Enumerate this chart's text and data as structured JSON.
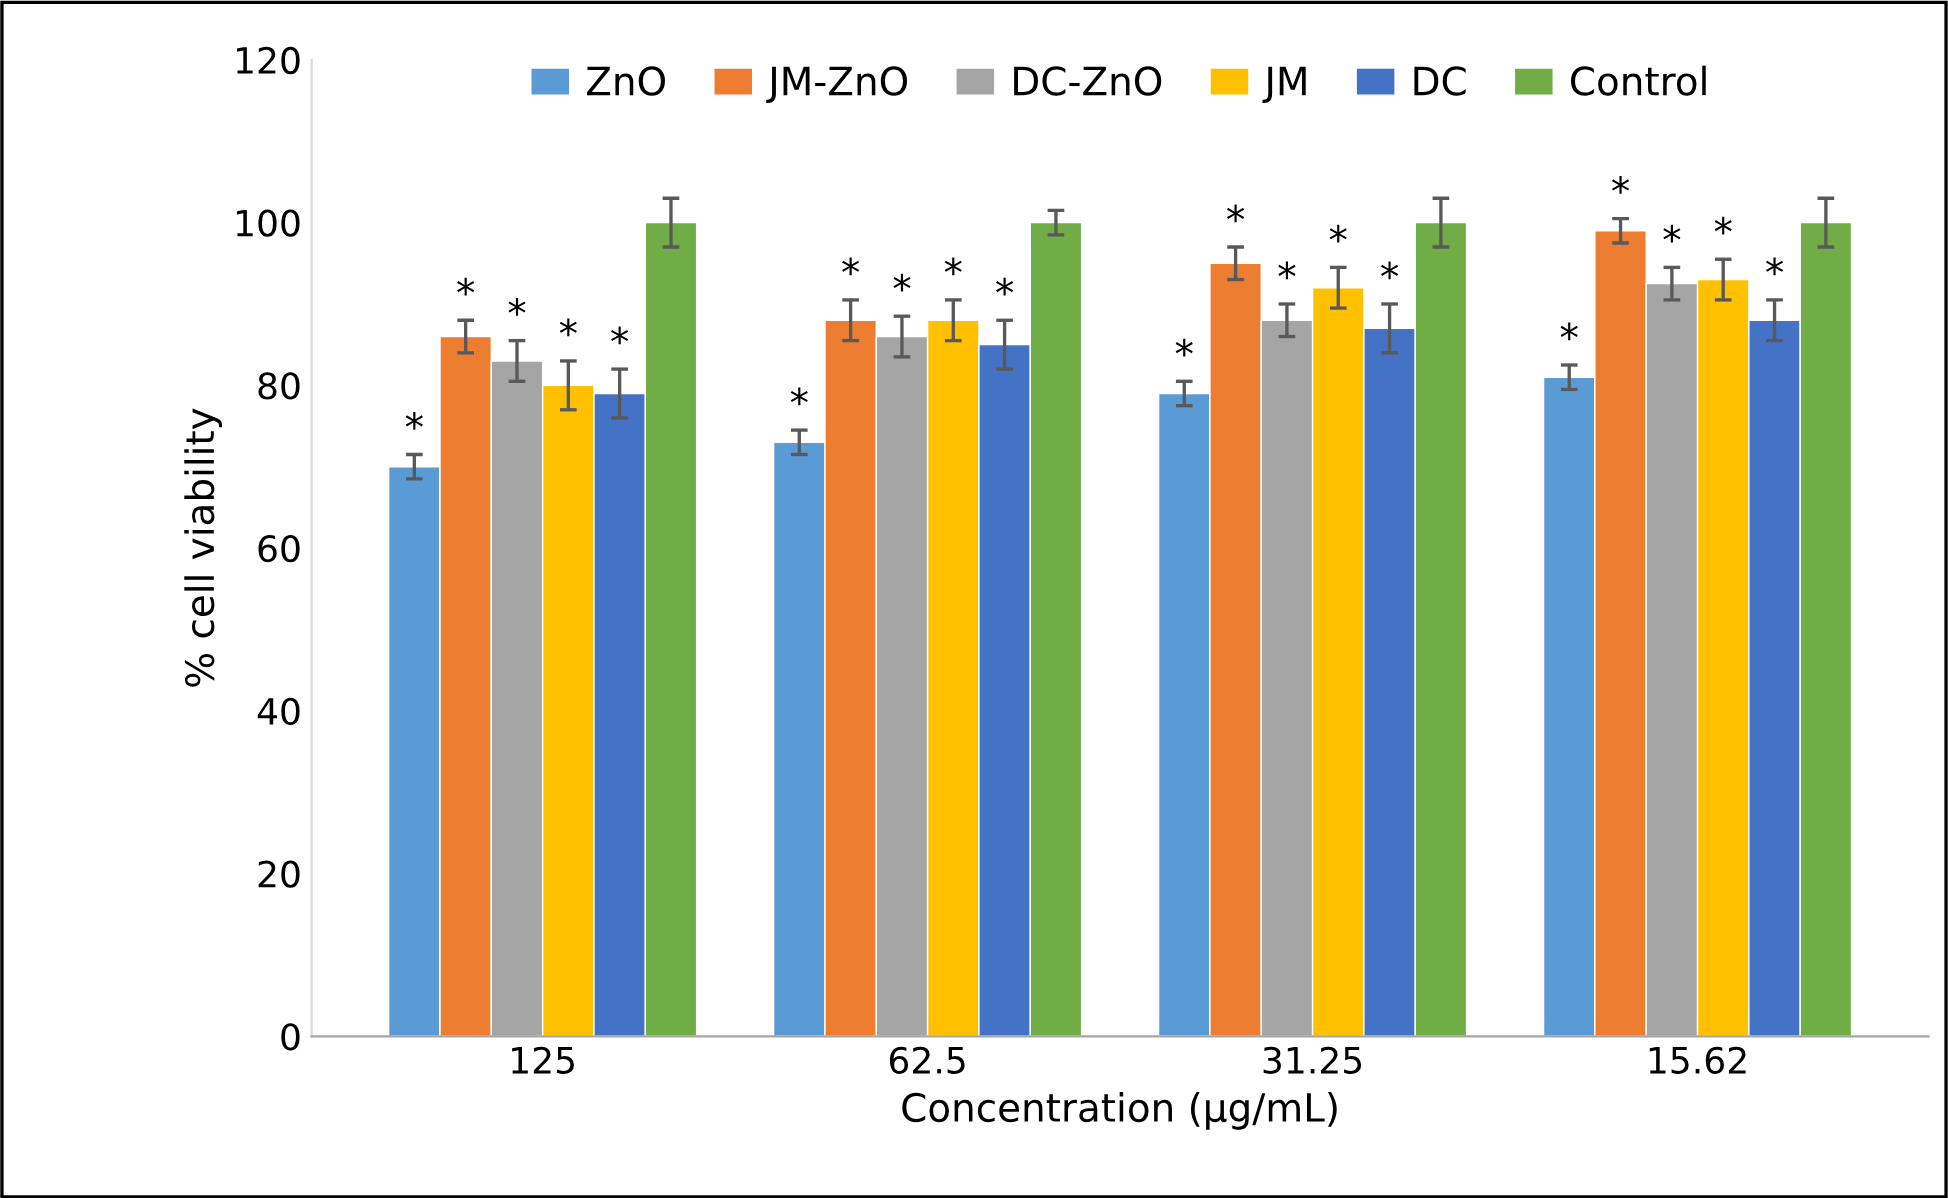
{
  "chart_data": {
    "type": "bar",
    "xlabel": "Concentration (µg/mL)",
    "ylabel": "% cell viability",
    "categories": [
      "125",
      "62.5",
      "31.25",
      "15.62"
    ],
    "series": [
      {
        "name": "ZnO",
        "color": "#5b9bd5",
        "values": [
          70,
          73,
          79,
          81
        ],
        "errors": [
          1.5,
          1.5,
          1.5,
          1.5
        ],
        "value_labels": [
          "*",
          "*",
          "*",
          "*"
        ]
      },
      {
        "name": "JM-ZnO",
        "color": "#ed7d31",
        "values": [
          86,
          88,
          95,
          99
        ],
        "errors": [
          2,
          2.5,
          2,
          1.5
        ],
        "value_labels": [
          "*",
          "*",
          "*",
          "*"
        ]
      },
      {
        "name": "DC-ZnO",
        "color": "#a5a5a5",
        "values": [
          83,
          86,
          88,
          92.5
        ],
        "errors": [
          2.5,
          2.5,
          2,
          2
        ],
        "value_labels": [
          "*",
          "*",
          "*",
          "*"
        ]
      },
      {
        "name": "JM",
        "color": "#ffc000",
        "values": [
          80,
          88,
          92,
          93
        ],
        "errors": [
          3,
          2.5,
          2.5,
          2.5
        ],
        "value_labels": [
          "*",
          "*",
          "*",
          "*"
        ]
      },
      {
        "name": "DC",
        "color": "#4472c4",
        "values": [
          79,
          85,
          87,
          88
        ],
        "errors": [
          3,
          3,
          3,
          2.5
        ],
        "value_labels": [
          "*",
          "*",
          "*",
          "*"
        ]
      },
      {
        "name": "Control",
        "color": "#70ad47",
        "values": [
          100,
          100,
          100,
          100
        ],
        "errors": [
          3,
          1.5,
          3,
          3
        ],
        "value_labels": [
          null,
          null,
          null,
          null
        ]
      }
    ],
    "ylim": [
      0,
      120
    ],
    "yticks": [
      0,
      20,
      40,
      60,
      80,
      100,
      120
    ],
    "grid": false,
    "legend": "top"
  }
}
